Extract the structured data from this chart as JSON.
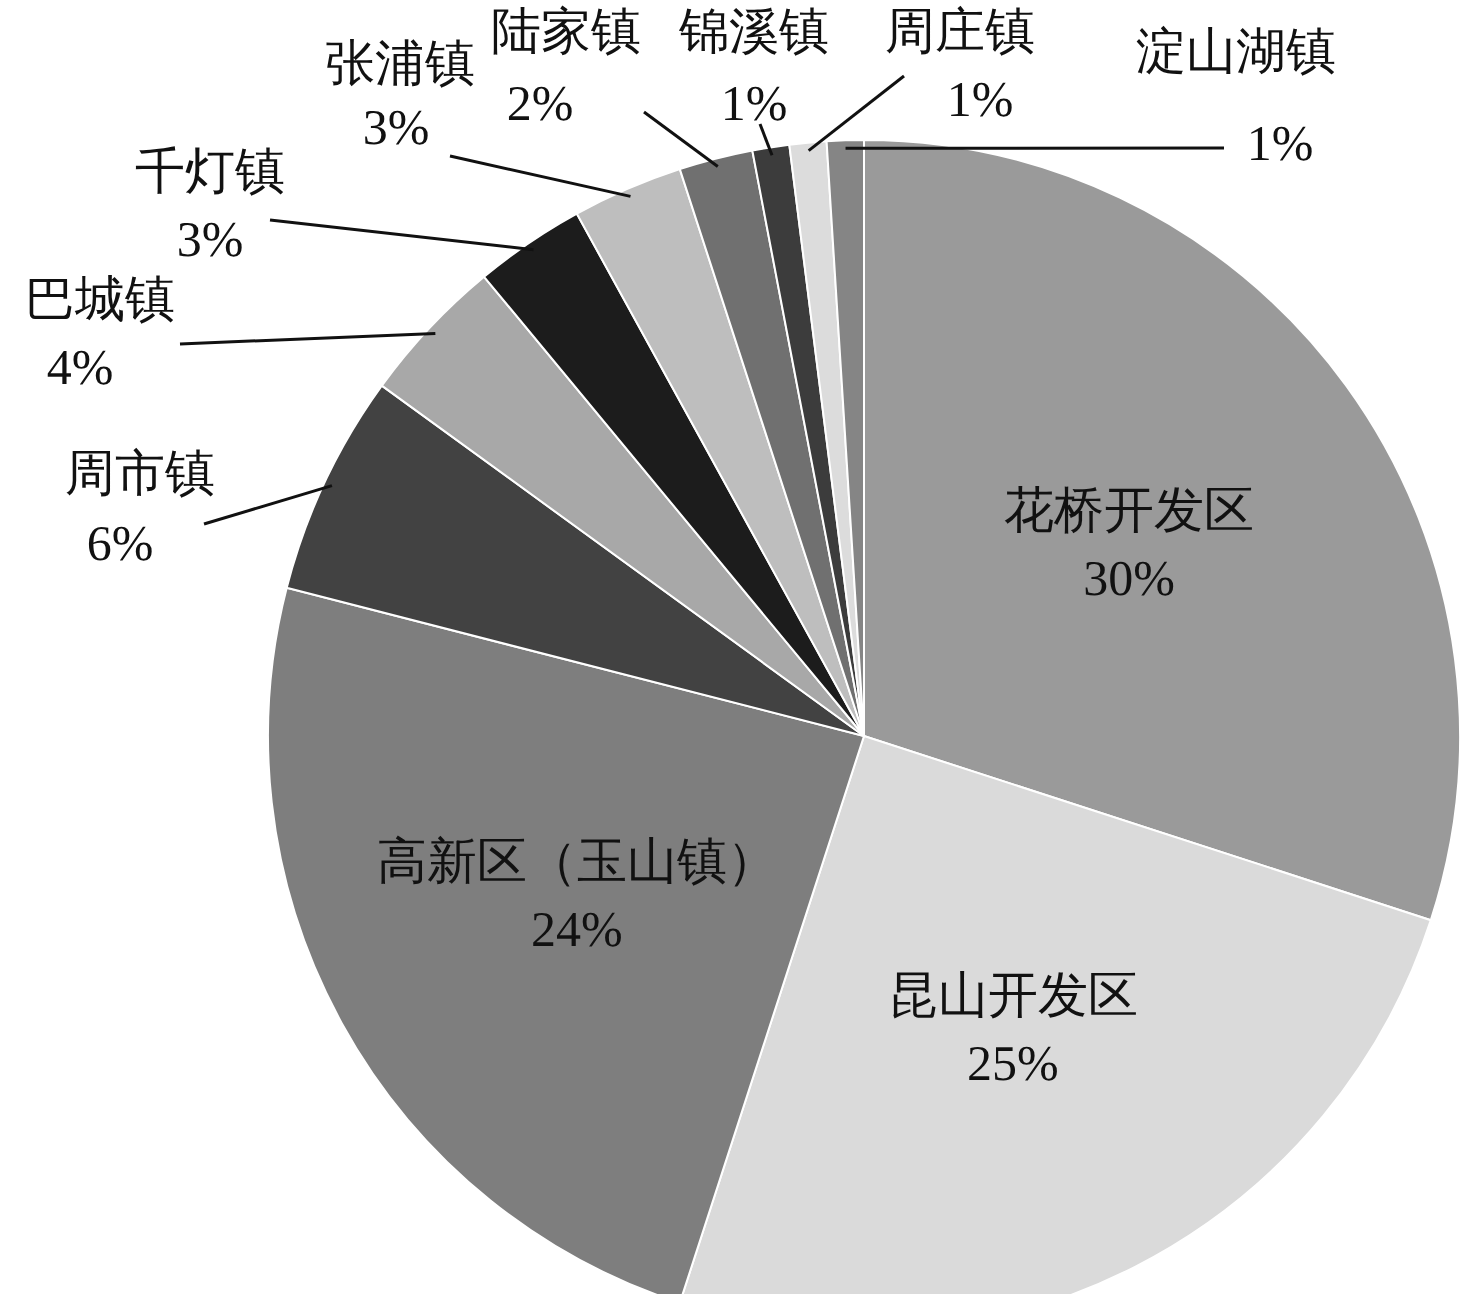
{
  "chart_data": {
    "type": "pie",
    "categories": [
      "花桥开发区",
      "昆山开发区",
      "高新区（玉山镇）",
      "周市镇",
      "巴城镇",
      "千灯镇",
      "张浦镇",
      "陆家镇",
      "锦溪镇",
      "周庄镇",
      "淀山湖镇"
    ],
    "values": [
      30,
      25,
      24,
      6,
      4,
      3,
      3,
      2,
      1,
      1,
      1
    ],
    "value_labels": [
      "30%",
      "25%",
      "24%",
      "6%",
      "4%",
      "3%",
      "3%",
      "2%",
      "1%",
      "1%",
      "1%"
    ],
    "colors": [
      "#9a9a9a",
      "#dadada",
      "#7e7e7e",
      "#424242",
      "#a8a8a8",
      "#1c1c1c",
      "#bebebe",
      "#707070",
      "#3c3c3c",
      "#dcdcdc",
      "#858585"
    ]
  }
}
